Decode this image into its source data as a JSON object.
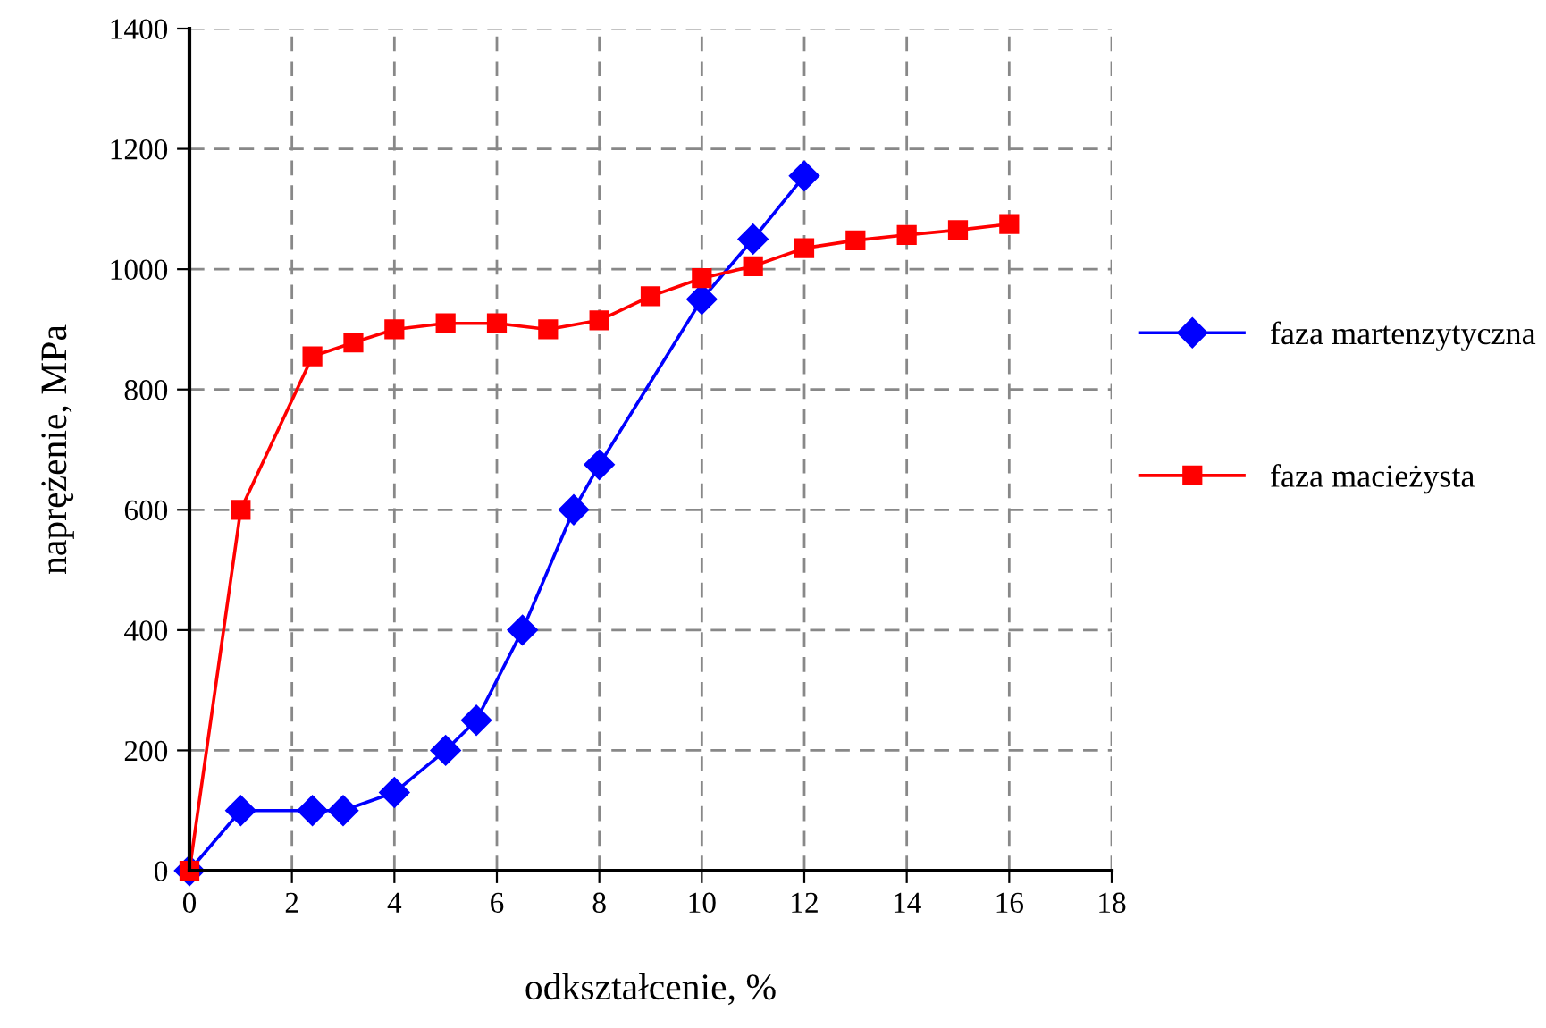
{
  "chart_data": {
    "type": "line",
    "xlabel": "odkształcenie, %",
    "ylabel": "naprężenie, MPa",
    "xlim": [
      0,
      18
    ],
    "xticks": [
      0,
      2,
      4,
      6,
      8,
      10,
      12,
      14,
      16,
      18
    ],
    "ylim": [
      0,
      1400
    ],
    "yticks": [
      0,
      200,
      400,
      600,
      800,
      1000,
      1200,
      1400
    ],
    "grid": true,
    "legend": "right",
    "series": [
      {
        "name": "faza martenzytyczna",
        "color": "#0000ff",
        "marker": "diamond",
        "x": [
          0,
          1,
          2.4,
          3,
          4,
          5,
          5.6,
          6.5,
          7.5,
          8,
          10,
          11,
          12
        ],
        "values": [
          0,
          100,
          100,
          100,
          130,
          200,
          250,
          400,
          600,
          675,
          950,
          1050,
          1155
        ]
      },
      {
        "name": "faza macieżysta",
        "color": "#ff0000",
        "marker": "square",
        "x": [
          0,
          1,
          2.4,
          3.2,
          4,
          5,
          6,
          7,
          8,
          9,
          10,
          11,
          12,
          13,
          14,
          15,
          16
        ],
        "values": [
          0,
          600,
          855,
          878,
          900,
          910,
          910,
          900,
          915,
          955,
          985,
          1005,
          1035,
          1048,
          1057,
          1065,
          1075
        ]
      }
    ]
  }
}
